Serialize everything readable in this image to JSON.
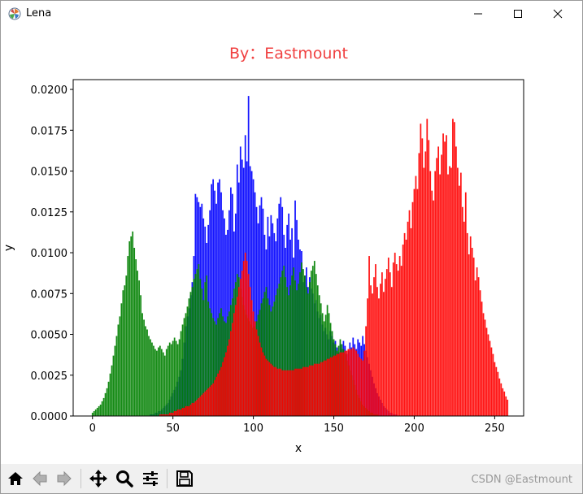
{
  "window": {
    "title": "Lena",
    "icons": [
      "matplotlib-app-icon",
      "minimize-icon",
      "maximize-icon",
      "close-icon"
    ]
  },
  "toolbar": {
    "buttons": [
      "home-icon",
      "back-arrow-icon",
      "forward-arrow-icon",
      "pan-move-icon",
      "zoom-magnifier-icon",
      "configure-subplots-icon",
      "save-floppy-icon"
    ],
    "watermark": "CSDN @Eastmount"
  },
  "colors": {
    "blue": "#0000ff",
    "green": "#008000",
    "red": "#ff0000",
    "title": "#f04040"
  },
  "chart_data": {
    "type": "bar",
    "title": "By：Eastmount",
    "xlabel": "x",
    "ylabel": "y",
    "xlim": [
      -12,
      268
    ],
    "ylim": [
      0,
      0.0206
    ],
    "x_ticks": [
      "0",
      "50",
      "100",
      "150",
      "200",
      "250"
    ],
    "x_tick_values": [
      0,
      50,
      100,
      150,
      200,
      250
    ],
    "y_ticks": [
      "0.0000",
      "0.0025",
      "0.0050",
      "0.0075",
      "0.0100",
      "0.0125",
      "0.0150",
      "0.0175",
      "0.0200"
    ],
    "y_tick_values": [
      0,
      0.0025,
      0.005,
      0.0075,
      0.01,
      0.0125,
      0.015,
      0.0175,
      0.02
    ],
    "grid": false,
    "x_step": 1,
    "series": [
      {
        "color": "blue",
        "x_start": 0,
        "values": [
          0.0,
          0.0,
          0.0,
          0.0,
          0.0,
          0.0,
          0.0,
          0.0,
          0.0,
          0.0,
          0.0,
          0.0,
          0.0,
          0.0,
          0.0,
          0.0,
          0.0,
          0.0,
          0.0,
          0.0,
          0.0,
          0.0,
          0.0,
          0.0,
          0.0,
          0.0,
          0.0,
          0.0,
          0.0,
          0.0,
          0.0,
          0.0,
          0.0,
          0.0,
          0.0,
          0.0,
          0.0001,
          0.0001,
          0.0001,
          0.0002,
          0.0002,
          0.0003,
          0.0003,
          0.0004,
          0.0005,
          0.0006,
          0.0007,
          0.0008,
          0.001,
          0.0012,
          0.0014,
          0.0016,
          0.0018,
          0.0021,
          0.0024,
          0.0028,
          0.0035,
          0.0045,
          0.0055,
          0.0061,
          0.0066,
          0.0074,
          0.0082,
          0.0098,
          0.0136,
          0.0134,
          0.0131,
          0.0128,
          0.013,
          0.0121,
          0.0116,
          0.0106,
          0.0117,
          0.0126,
          0.0142,
          0.0145,
          0.0138,
          0.013,
          0.0143,
          0.0145,
          0.0137,
          0.0126,
          0.0121,
          0.0111,
          0.0114,
          0.0126,
          0.014,
          0.0136,
          0.0113,
          0.0124,
          0.0154,
          0.0143,
          0.0165,
          0.0157,
          0.0152,
          0.0172,
          0.0156,
          0.0196,
          0.0153,
          0.015,
          0.0145,
          0.0137,
          0.0128,
          0.0118,
          0.0129,
          0.0134,
          0.0127,
          0.0111,
          0.0102,
          0.0122,
          0.011,
          0.0123,
          0.0118,
          0.0112,
          0.0107,
          0.0121,
          0.013,
          0.0134,
          0.0128,
          0.0111,
          0.0103,
          0.0117,
          0.0124,
          0.0108,
          0.0115,
          0.0097,
          0.0132,
          0.012,
          0.0108,
          0.0102,
          0.0101,
          0.0082,
          0.0086,
          0.0091,
          0.0079,
          0.0085,
          0.0078,
          0.0075,
          0.0069,
          0.0071,
          0.0064,
          0.006,
          0.0062,
          0.0056,
          0.0052,
          0.0054,
          0.005,
          0.0047,
          0.0052,
          0.0049,
          0.0045,
          0.0046,
          0.0042,
          0.0039,
          0.0044,
          0.0041,
          0.0046,
          0.0043,
          0.0038,
          0.004,
          0.0045,
          0.0042,
          0.0048,
          0.0044,
          0.0041,
          0.0047,
          0.0045,
          0.0043,
          0.0049,
          0.0044,
          0.004,
          0.0036,
          0.0032,
          0.0028,
          0.0024,
          0.002,
          0.0017,
          0.0014,
          0.0012,
          0.001,
          0.0008,
          0.0006,
          0.0005,
          0.0004,
          0.0003,
          0.0002,
          0.0002,
          0.0001,
          0.0001,
          0.0001,
          0.0,
          0.0,
          0.0,
          0.0,
          0.0,
          0.0,
          0.0,
          0.0,
          0.0,
          0.0,
          0.0,
          0.0,
          0.0,
          0.0,
          0.0,
          0.0,
          0.0,
          0.0,
          0.0,
          0.0,
          0.0,
          0.0,
          0.0,
          0.0,
          0.0,
          0.0,
          0.0,
          0.0,
          0.0,
          0.0,
          0.0,
          0.0,
          0.0,
          0.0,
          0.0,
          0.0,
          0.0,
          0.0,
          0.0,
          0.0,
          0.0,
          0.0,
          0.0,
          0.0,
          0.0,
          0.0,
          0.0,
          0.0,
          0.0,
          0.0,
          0.0,
          0.0,
          0.0,
          0.0,
          0.0,
          0.0,
          0.0,
          0.0,
          0.0,
          0.0,
          0.0,
          0.0,
          0.0,
          0.0,
          0.0,
          0.0
        ]
      },
      {
        "color": "green",
        "x_start": 0,
        "values": [
          0.0002,
          0.0003,
          0.0004,
          0.0005,
          0.0006,
          0.0007,
          0.0009,
          0.0011,
          0.0014,
          0.0017,
          0.0021,
          0.0026,
          0.0031,
          0.0037,
          0.0043,
          0.0049,
          0.0056,
          0.0061,
          0.0069,
          0.0077,
          0.008,
          0.0086,
          0.0098,
          0.0107,
          0.011,
          0.0113,
          0.0103,
          0.0096,
          0.0089,
          0.0083,
          0.0074,
          0.0063,
          0.0059,
          0.0055,
          0.0053,
          0.0049,
          0.0047,
          0.0045,
          0.0043,
          0.0041,
          0.004,
          0.0042,
          0.0043,
          0.0041,
          0.0039,
          0.0037,
          0.0041,
          0.0043,
          0.0045,
          0.0044,
          0.0046,
          0.0048,
          0.0046,
          0.0044,
          0.0047,
          0.0052,
          0.0056,
          0.006,
          0.0063,
          0.0067,
          0.0072,
          0.0076,
          0.0079,
          0.0084,
          0.0087,
          0.009,
          0.0093,
          0.0084,
          0.0078,
          0.0071,
          0.0082,
          0.0086,
          0.007,
          0.0066,
          0.0063,
          0.006,
          0.0058,
          0.0056,
          0.006,
          0.0063,
          0.0066,
          0.0061,
          0.0058,
          0.0057,
          0.0061,
          0.0064,
          0.0068,
          0.0072,
          0.0078,
          0.0082,
          0.0087,
          0.0085,
          0.0078,
          0.0073,
          0.0068,
          0.0065,
          0.0062,
          0.006,
          0.0058,
          0.0056,
          0.0054,
          0.0055,
          0.0058,
          0.0062,
          0.0065,
          0.0069,
          0.0072,
          0.0076,
          0.0079,
          0.0072,
          0.0068,
          0.0064,
          0.0067,
          0.007,
          0.0074,
          0.0078,
          0.0081,
          0.0085,
          0.0089,
          0.0092,
          0.0085,
          0.0079,
          0.0074,
          0.008,
          0.0086,
          0.0091,
          0.0083,
          0.0077,
          0.0081,
          0.0088,
          0.0094,
          0.009,
          0.0086,
          0.0079,
          0.0075,
          0.0082,
          0.0089,
          0.0092,
          0.0095,
          0.0087,
          0.008,
          0.0074,
          0.0069,
          0.0063,
          0.0058,
          0.0062,
          0.0068,
          0.0063,
          0.0057,
          0.0052,
          0.0047,
          0.0044,
          0.004,
          0.0043,
          0.0047,
          0.0044,
          0.0041,
          0.0038,
          0.0034,
          0.0031,
          0.0028,
          0.0025,
          0.0022,
          0.0019,
          0.0016,
          0.0013,
          0.0011,
          0.0009,
          0.0007,
          0.0006,
          0.0005,
          0.0004,
          0.0003,
          0.0002,
          0.0002,
          0.0001,
          0.0001,
          0.0001,
          0.0,
          0.0,
          0.0,
          0.0,
          0.0,
          0.0,
          0.0,
          0.0,
          0.0,
          0.0,
          0.0,
          0.0,
          0.0,
          0.0,
          0.0,
          0.0,
          0.0,
          0.0,
          0.0,
          0.0,
          0.0,
          0.0,
          0.0,
          0.0,
          0.0,
          0.0,
          0.0,
          0.0,
          0.0,
          0.0,
          0.0,
          0.0,
          0.0,
          0.0,
          0.0,
          0.0,
          0.0,
          0.0,
          0.0,
          0.0,
          0.0,
          0.0,
          0.0,
          0.0,
          0.0,
          0.0,
          0.0,
          0.0,
          0.0,
          0.0,
          0.0,
          0.0,
          0.0,
          0.0,
          0.0,
          0.0,
          0.0,
          0.0,
          0.0,
          0.0,
          0.0,
          0.0,
          0.0,
          0.0,
          0.0,
          0.0,
          0.0,
          0.0,
          0.0,
          0.0,
          0.0,
          0.0,
          0.0,
          0.0,
          0.0,
          0.0,
          0.0,
          0.0,
          0.0,
          0.0,
          0.0
        ]
      },
      {
        "color": "red",
        "x_start": 0,
        "values": [
          0.0,
          0.0,
          0.0,
          0.0,
          0.0,
          0.0,
          0.0,
          0.0,
          0.0,
          0.0,
          0.0,
          0.0,
          0.0,
          0.0,
          0.0,
          0.0,
          0.0,
          0.0,
          0.0,
          0.0,
          0.0,
          0.0,
          0.0,
          0.0,
          0.0,
          0.0,
          0.0,
          0.0,
          0.0,
          0.0,
          0.0,
          0.0,
          0.0,
          0.0,
          0.0,
          0.0,
          0.0,
          0.0,
          0.0,
          0.0,
          0.0,
          0.0,
          0.0001,
          0.0001,
          0.0001,
          0.0001,
          0.0001,
          0.0001,
          0.0002,
          0.0002,
          0.0002,
          0.0003,
          0.0003,
          0.0004,
          0.0004,
          0.0004,
          0.0005,
          0.0005,
          0.0006,
          0.0006,
          0.0006,
          0.0007,
          0.0008,
          0.0008,
          0.0009,
          0.001,
          0.0011,
          0.0012,
          0.0013,
          0.0014,
          0.0015,
          0.0016,
          0.0017,
          0.0018,
          0.0019,
          0.002,
          0.0022,
          0.0024,
          0.0026,
          0.0028,
          0.003,
          0.0033,
          0.0036,
          0.0039,
          0.0043,
          0.0047,
          0.0052,
          0.0057,
          0.0063,
          0.0068,
          0.0073,
          0.0079,
          0.0084,
          0.0089,
          0.0095,
          0.01,
          0.0095,
          0.0087,
          0.0079,
          0.0071,
          0.0064,
          0.0058,
          0.0053,
          0.0049,
          0.0045,
          0.0042,
          0.0039,
          0.0037,
          0.0035,
          0.0034,
          0.0033,
          0.0032,
          0.0031,
          0.003,
          0.003,
          0.0029,
          0.0029,
          0.0029,
          0.0028,
          0.0028,
          0.0028,
          0.0028,
          0.0028,
          0.0028,
          0.0028,
          0.0028,
          0.0029,
          0.0029,
          0.0029,
          0.0029,
          0.0029,
          0.003,
          0.003,
          0.003,
          0.003,
          0.0031,
          0.0031,
          0.0031,
          0.0032,
          0.0032,
          0.0032,
          0.0032,
          0.0033,
          0.0033,
          0.0034,
          0.0034,
          0.0035,
          0.0035,
          0.0036,
          0.0036,
          0.0037,
          0.0037,
          0.0038,
          0.0038,
          0.0039,
          0.0039,
          0.0039,
          0.004,
          0.004,
          0.0041,
          0.0041,
          0.0041,
          0.0042,
          0.0041,
          0.004,
          0.0038,
          0.0036,
          0.0035,
          0.0034,
          0.004,
          0.0055,
          0.0072,
          0.0098,
          0.008,
          0.0075,
          0.0085,
          0.0093,
          0.0079,
          0.0072,
          0.0081,
          0.0088,
          0.0076,
          0.0084,
          0.009,
          0.0097,
          0.0088,
          0.0079,
          0.0094,
          0.01,
          0.0093,
          0.0089,
          0.0098,
          0.0092,
          0.0105,
          0.0112,
          0.0108,
          0.0119,
          0.0126,
          0.0115,
          0.0131,
          0.0139,
          0.0147,
          0.0139,
          0.0161,
          0.0179,
          0.017,
          0.0152,
          0.0162,
          0.0182,
          0.0169,
          0.015,
          0.0138,
          0.0132,
          0.015,
          0.0158,
          0.0165,
          0.0148,
          0.016,
          0.0173,
          0.0168,
          0.0172,
          0.0148,
          0.0153,
          0.0152,
          0.0182,
          0.018,
          0.0165,
          0.0152,
          0.0141,
          0.0149,
          0.0128,
          0.0119,
          0.0137,
          0.0112,
          0.0099,
          0.011,
          0.0103,
          0.0097,
          0.0083,
          0.0091,
          0.0085,
          0.0077,
          0.007,
          0.0063,
          0.0059,
          0.0054,
          0.005,
          0.0046,
          0.0042,
          0.0038,
          0.0033,
          0.003,
          0.0027,
          0.0023,
          0.002,
          0.0017,
          0.0015,
          0.0012,
          0.001
        ]
      }
    ]
  }
}
